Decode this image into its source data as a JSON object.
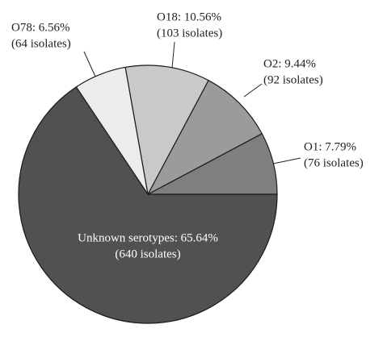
{
  "chart_data": {
    "type": "pie",
    "values": [
      7.79,
      9.44,
      10.56,
      6.56,
      65.64
    ],
    "value_labels": [
      "O1: 7.79%",
      "O2: 9.44%",
      "O18: 10.56%",
      "O78: 6.56%",
      "Unknown serotypes: 65.64%"
    ],
    "counts": [
      76,
      92,
      103,
      64,
      640
    ],
    "count_labels": [
      "(76 isolates)",
      "(92 isolates)",
      "(103 isolates)",
      "(64 isolates)",
      "(640 isolates)"
    ],
    "colors": [
      "#7f7f7f",
      "#9b9b9b",
      "#c9c9c9",
      "#ececec",
      "#515151"
    ]
  }
}
